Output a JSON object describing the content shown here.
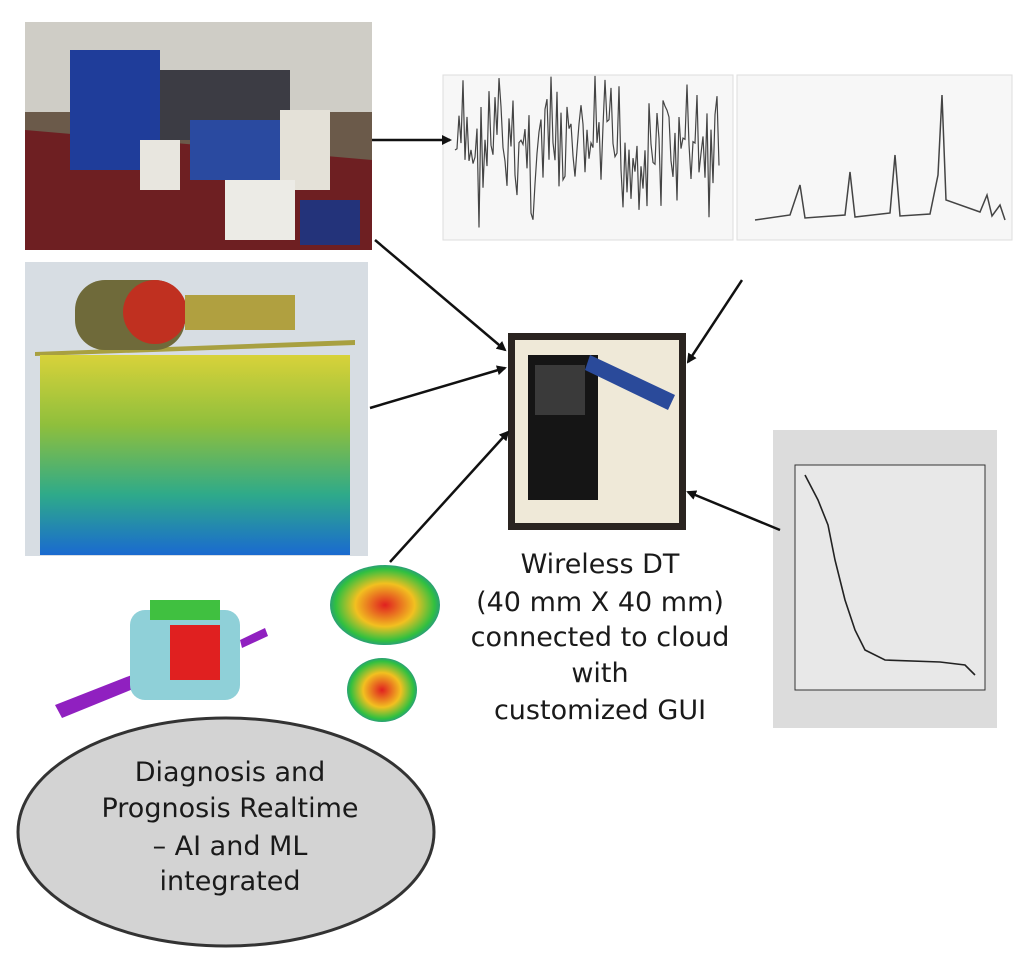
{
  "device_caption": {
    "lines": [
      "Wireless DT",
      "(40 mm X 40 mm)",
      "connected to  cloud",
      "with",
      "customized GUI"
    ]
  },
  "ellipse": {
    "lines": [
      "Diagnosis  and",
      "Prognosis  Realtime",
      "–  AI and ML",
      "integrated"
    ]
  }
}
